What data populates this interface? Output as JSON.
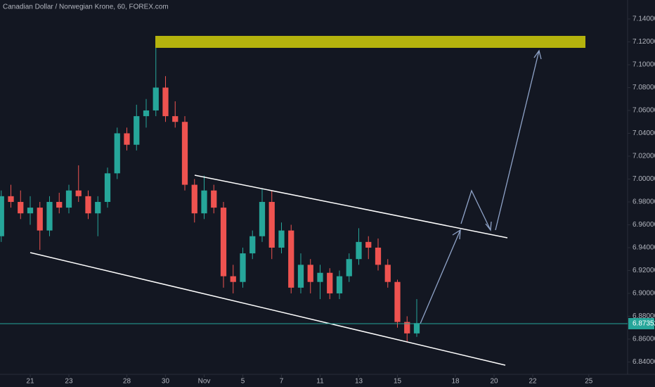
{
  "chart_data": {
    "type": "candlestick",
    "title": "Canadian Dollar / Norwegian Krone, 60, FOREX.com",
    "up_color": "#26a69a",
    "down_color": "#ef5350",
    "x": [
      -1.5,
      -1,
      -0.5,
      0,
      0.5,
      1,
      1.5,
      2,
      2.5,
      3,
      3.5,
      4,
      4.5,
      5,
      5.5,
      6,
      6.5,
      7,
      7.5,
      8,
      8.5,
      9,
      9.5,
      10,
      10.5,
      11,
      11.5,
      12,
      12.5,
      13,
      13.5,
      14,
      14.5,
      15,
      15.5,
      16,
      16.5,
      17,
      17.5,
      18,
      18.5,
      19,
      19.5,
      20
    ],
    "open": [
      6.95,
      6.985,
      6.98,
      6.97,
      6.975,
      6.955,
      6.98,
      6.975,
      6.99,
      6.985,
      6.97,
      6.98,
      7.005,
      7.04,
      7.03,
      7.055,
      7.06,
      7.08,
      7.055,
      7.05,
      6.995,
      6.97,
      6.99,
      6.975,
      6.915,
      6.91,
      6.935,
      6.95,
      6.98,
      6.94,
      6.955,
      6.905,
      6.925,
      6.91,
      6.918,
      6.9,
      6.915,
      6.93,
      6.945,
      6.94,
      6.925,
      6.91,
      6.875,
      6.865
    ],
    "high": [
      6.99,
      6.995,
      6.99,
      6.985,
      6.98,
      6.985,
      6.988,
      6.995,
      7.012,
      6.99,
      6.985,
      7.01,
      7.045,
      7.045,
      7.065,
      7.07,
      7.118,
      7.09,
      7.068,
      7.055,
      7.0,
      7.003,
      6.995,
      6.98,
      6.925,
      6.94,
      6.955,
      6.992,
      6.99,
      6.962,
      6.96,
      6.935,
      6.93,
      6.925,
      6.922,
      6.92,
      6.935,
      6.957,
      6.95,
      6.948,
      6.93,
      6.912,
      6.88,
      6.895
    ],
    "low": [
      6.945,
      6.975,
      6.965,
      6.96,
      6.938,
      6.95,
      6.97,
      6.97,
      6.98,
      6.965,
      6.95,
      6.975,
      7.0,
      7.025,
      7.025,
      7.045,
      7.055,
      7.05,
      7.045,
      6.99,
      6.962,
      6.965,
      6.97,
      6.905,
      6.9,
      6.905,
      6.93,
      6.945,
      6.93,
      6.935,
      6.9,
      6.9,
      6.9,
      6.895,
      6.895,
      6.895,
      6.91,
      6.925,
      6.93,
      6.92,
      6.905,
      6.87,
      6.858,
      6.862
    ],
    "close": [
      6.985,
      6.98,
      6.97,
      6.975,
      6.955,
      6.98,
      6.975,
      6.99,
      6.985,
      6.97,
      6.98,
      7.005,
      7.04,
      7.03,
      7.055,
      7.06,
      7.08,
      7.055,
      7.05,
      6.995,
      6.97,
      6.99,
      6.975,
      6.915,
      6.91,
      6.935,
      6.95,
      6.98,
      6.94,
      6.955,
      6.905,
      6.925,
      6.91,
      6.918,
      6.9,
      6.915,
      6.93,
      6.945,
      6.94,
      6.925,
      6.91,
      6.875,
      6.865,
      6.874
    ],
    "last_price": {
      "value": 6.87352,
      "label": "6.87352",
      "color": "#26a69a"
    },
    "xlim": [
      -1.5636,
      30.909
    ],
    "xticks": [
      {
        "value": 0,
        "label": "21"
      },
      {
        "value": 2,
        "label": "23"
      },
      {
        "value": 5,
        "label": "28"
      },
      {
        "value": 7,
        "label": "30"
      },
      {
        "value": 9,
        "label": "Nov"
      },
      {
        "value": 11,
        "label": "5"
      },
      {
        "value": 13,
        "label": "7"
      },
      {
        "value": 15,
        "label": "11"
      },
      {
        "value": 17,
        "label": "13"
      },
      {
        "value": 19,
        "label": "15"
      },
      {
        "value": 22,
        "label": "18"
      },
      {
        "value": 24,
        "label": "20"
      },
      {
        "value": 26,
        "label": "22"
      },
      {
        "value": 28.9,
        "label": "25"
      }
    ],
    "ylim": [
      6.8292,
      7.1566
    ],
    "yticks": [
      {
        "value": 6.84,
        "label": "6.84000"
      },
      {
        "value": 6.86,
        "label": "6.86000"
      },
      {
        "value": 6.88,
        "label": "6.88000"
      },
      {
        "value": 6.9,
        "label": "6.90000"
      },
      {
        "value": 6.92,
        "label": "6.92000"
      },
      {
        "value": 6.94,
        "label": "6.94000"
      },
      {
        "value": 6.96,
        "label": "6.96000"
      },
      {
        "value": 6.98,
        "label": "6.98000"
      },
      {
        "value": 7.0,
        "label": "7.00000"
      },
      {
        "value": 7.02,
        "label": "7.02000"
      },
      {
        "value": 7.04,
        "label": "7.04000"
      },
      {
        "value": 7.06,
        "label": "7.06000"
      },
      {
        "value": 7.08,
        "label": "7.08000"
      },
      {
        "value": 7.1,
        "label": "7.10000"
      },
      {
        "value": 7.12,
        "label": "7.12000"
      },
      {
        "value": 7.14,
        "label": "7.14000"
      }
    ]
  }
}
